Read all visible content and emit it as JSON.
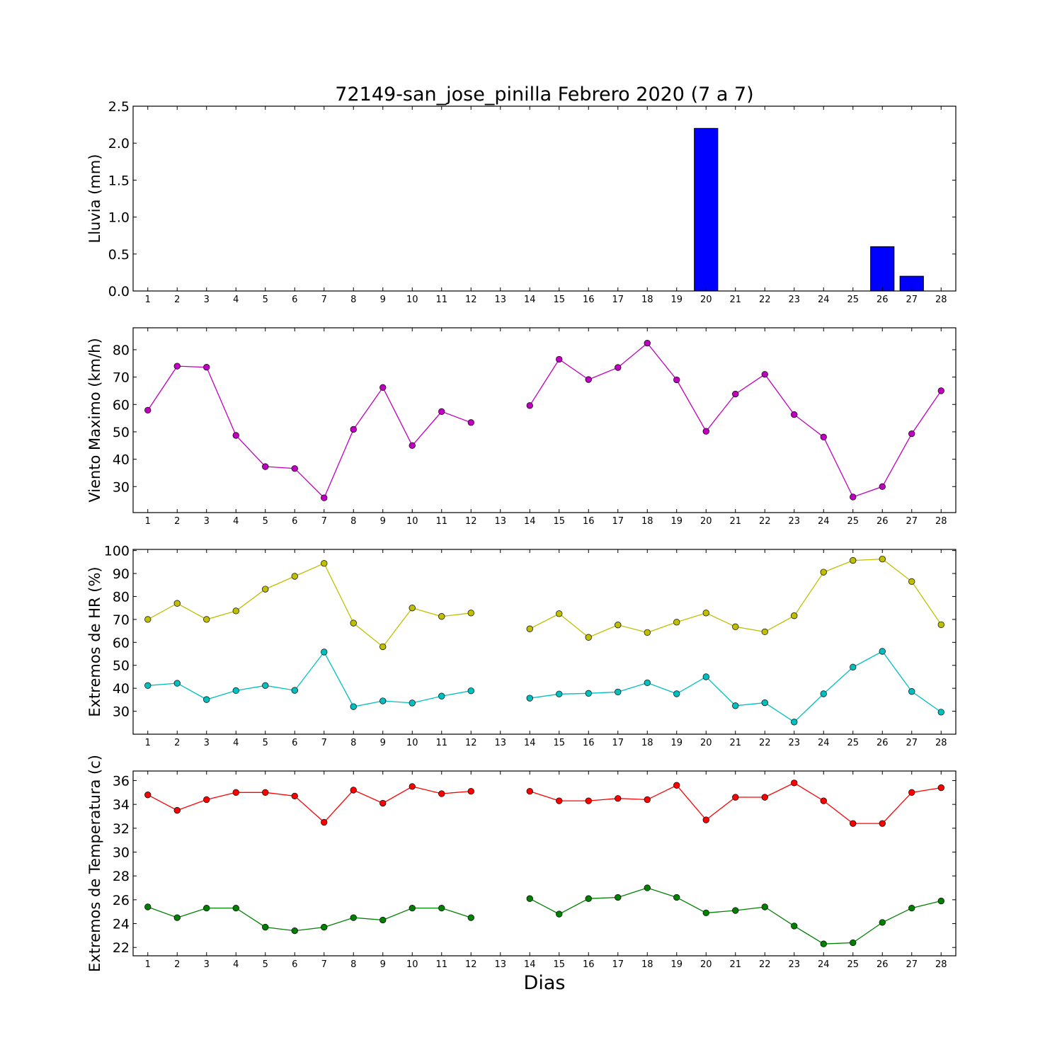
{
  "title": "72149-san_jose_pinilla Febrero 2020  (7 a 7)",
  "xlabel": "Dias",
  "chart_data": [
    {
      "type": "bar",
      "ylabel": "Lluvia (mm)",
      "ylim": [
        0,
        2.5
      ],
      "yticks": [
        0.0,
        0.5,
        1.0,
        1.5,
        2.0,
        2.5
      ],
      "ytick_format": 1,
      "xlim": [
        0.5,
        28.5
      ],
      "categories": [
        1,
        2,
        3,
        4,
        5,
        6,
        7,
        8,
        9,
        10,
        11,
        12,
        13,
        14,
        15,
        16,
        17,
        18,
        19,
        20,
        21,
        22,
        23,
        24,
        25,
        26,
        27,
        28
      ],
      "series": [
        {
          "color": "#0000ff",
          "values": [
            0,
            0,
            0,
            0,
            0,
            0,
            0,
            0,
            0,
            0,
            0,
            0,
            0,
            0,
            0,
            0,
            0,
            0,
            0,
            2.2,
            0,
            0,
            0,
            0,
            0,
            0.6,
            0.2,
            0
          ]
        }
      ]
    },
    {
      "type": "line",
      "ylabel": "Viento Maximo (km/h)",
      "ylim": [
        20.5,
        88
      ],
      "yticks": [
        30,
        40,
        50,
        60,
        70,
        80
      ],
      "ytick_format": 0,
      "xlim": [
        0.5,
        28.5
      ],
      "categories": [
        1,
        2,
        3,
        4,
        5,
        6,
        7,
        8,
        9,
        10,
        11,
        12,
        13,
        14,
        15,
        16,
        17,
        18,
        19,
        20,
        21,
        22,
        23,
        24,
        25,
        26,
        27,
        28
      ],
      "series": [
        {
          "color": "#bf00bf",
          "values": [
            57.9,
            74.0,
            73.6,
            48.7,
            37.3,
            36.6,
            25.9,
            50.9,
            66.2,
            45.0,
            57.4,
            53.4,
            null,
            59.6,
            76.5,
            69.1,
            73.5,
            82.4,
            69.0,
            50.2,
            63.8,
            71.0,
            56.3,
            48.1,
            26.2,
            30.0,
            49.3,
            65.0
          ]
        }
      ]
    },
    {
      "type": "line",
      "ylabel": "Extremos de HR (%)",
      "ylim": [
        20,
        100.5
      ],
      "yticks": [
        30,
        40,
        50,
        60,
        70,
        80,
        90,
        100
      ],
      "ytick_format": 0,
      "xlim": [
        0.5,
        28.5
      ],
      "categories": [
        1,
        2,
        3,
        4,
        5,
        6,
        7,
        8,
        9,
        10,
        11,
        12,
        13,
        14,
        15,
        16,
        17,
        18,
        19,
        20,
        21,
        22,
        23,
        24,
        25,
        26,
        27,
        28
      ],
      "series": [
        {
          "color": "#bfbf00",
          "values": [
            70.0,
            77.0,
            70.0,
            73.7,
            83.2,
            88.8,
            94.4,
            68.4,
            58.1,
            75.0,
            71.3,
            72.8,
            null,
            65.9,
            72.5,
            62.2,
            67.6,
            64.3,
            68.8,
            72.8,
            66.8,
            64.6,
            71.6,
            90.6,
            95.7,
            96.3,
            86.5,
            67.7
          ]
        },
        {
          "color": "#00bfbf",
          "values": [
            41.2,
            42.2,
            35.1,
            39.0,
            41.2,
            39.1,
            55.8,
            32.0,
            34.5,
            33.6,
            36.6,
            38.9,
            null,
            35.7,
            37.5,
            37.8,
            38.4,
            42.4,
            37.6,
            45.0,
            32.4,
            33.7,
            25.3,
            37.6,
            49.2,
            56.1,
            38.6,
            29.6
          ]
        }
      ]
    },
    {
      "type": "line",
      "ylabel": "Extremos de Temperatura (c)",
      "ylim": [
        21.3,
        36.8
      ],
      "yticks": [
        22,
        24,
        26,
        28,
        30,
        32,
        34,
        36
      ],
      "ytick_format": 0,
      "xlim": [
        0.5,
        28.5
      ],
      "categories": [
        1,
        2,
        3,
        4,
        5,
        6,
        7,
        8,
        9,
        10,
        11,
        12,
        13,
        14,
        15,
        16,
        17,
        18,
        19,
        20,
        21,
        22,
        23,
        24,
        25,
        26,
        27,
        28
      ],
      "series": [
        {
          "color": "#ff0000",
          "values": [
            34.8,
            33.5,
            34.4,
            35.0,
            35.0,
            34.7,
            32.5,
            35.2,
            34.1,
            35.5,
            34.9,
            35.1,
            null,
            35.1,
            34.3,
            34.3,
            34.5,
            34.4,
            35.6,
            32.7,
            34.6,
            34.6,
            35.8,
            34.3,
            32.4,
            32.4,
            35.0,
            35.4
          ]
        },
        {
          "color": "#008000",
          "values": [
            25.4,
            24.5,
            25.3,
            25.3,
            23.7,
            23.4,
            23.7,
            24.5,
            24.3,
            25.3,
            25.3,
            24.5,
            null,
            26.1,
            24.8,
            26.1,
            26.2,
            27.0,
            26.2,
            24.9,
            25.1,
            25.4,
            23.8,
            22.3,
            22.4,
            24.1,
            25.3,
            25.9
          ]
        }
      ]
    }
  ]
}
